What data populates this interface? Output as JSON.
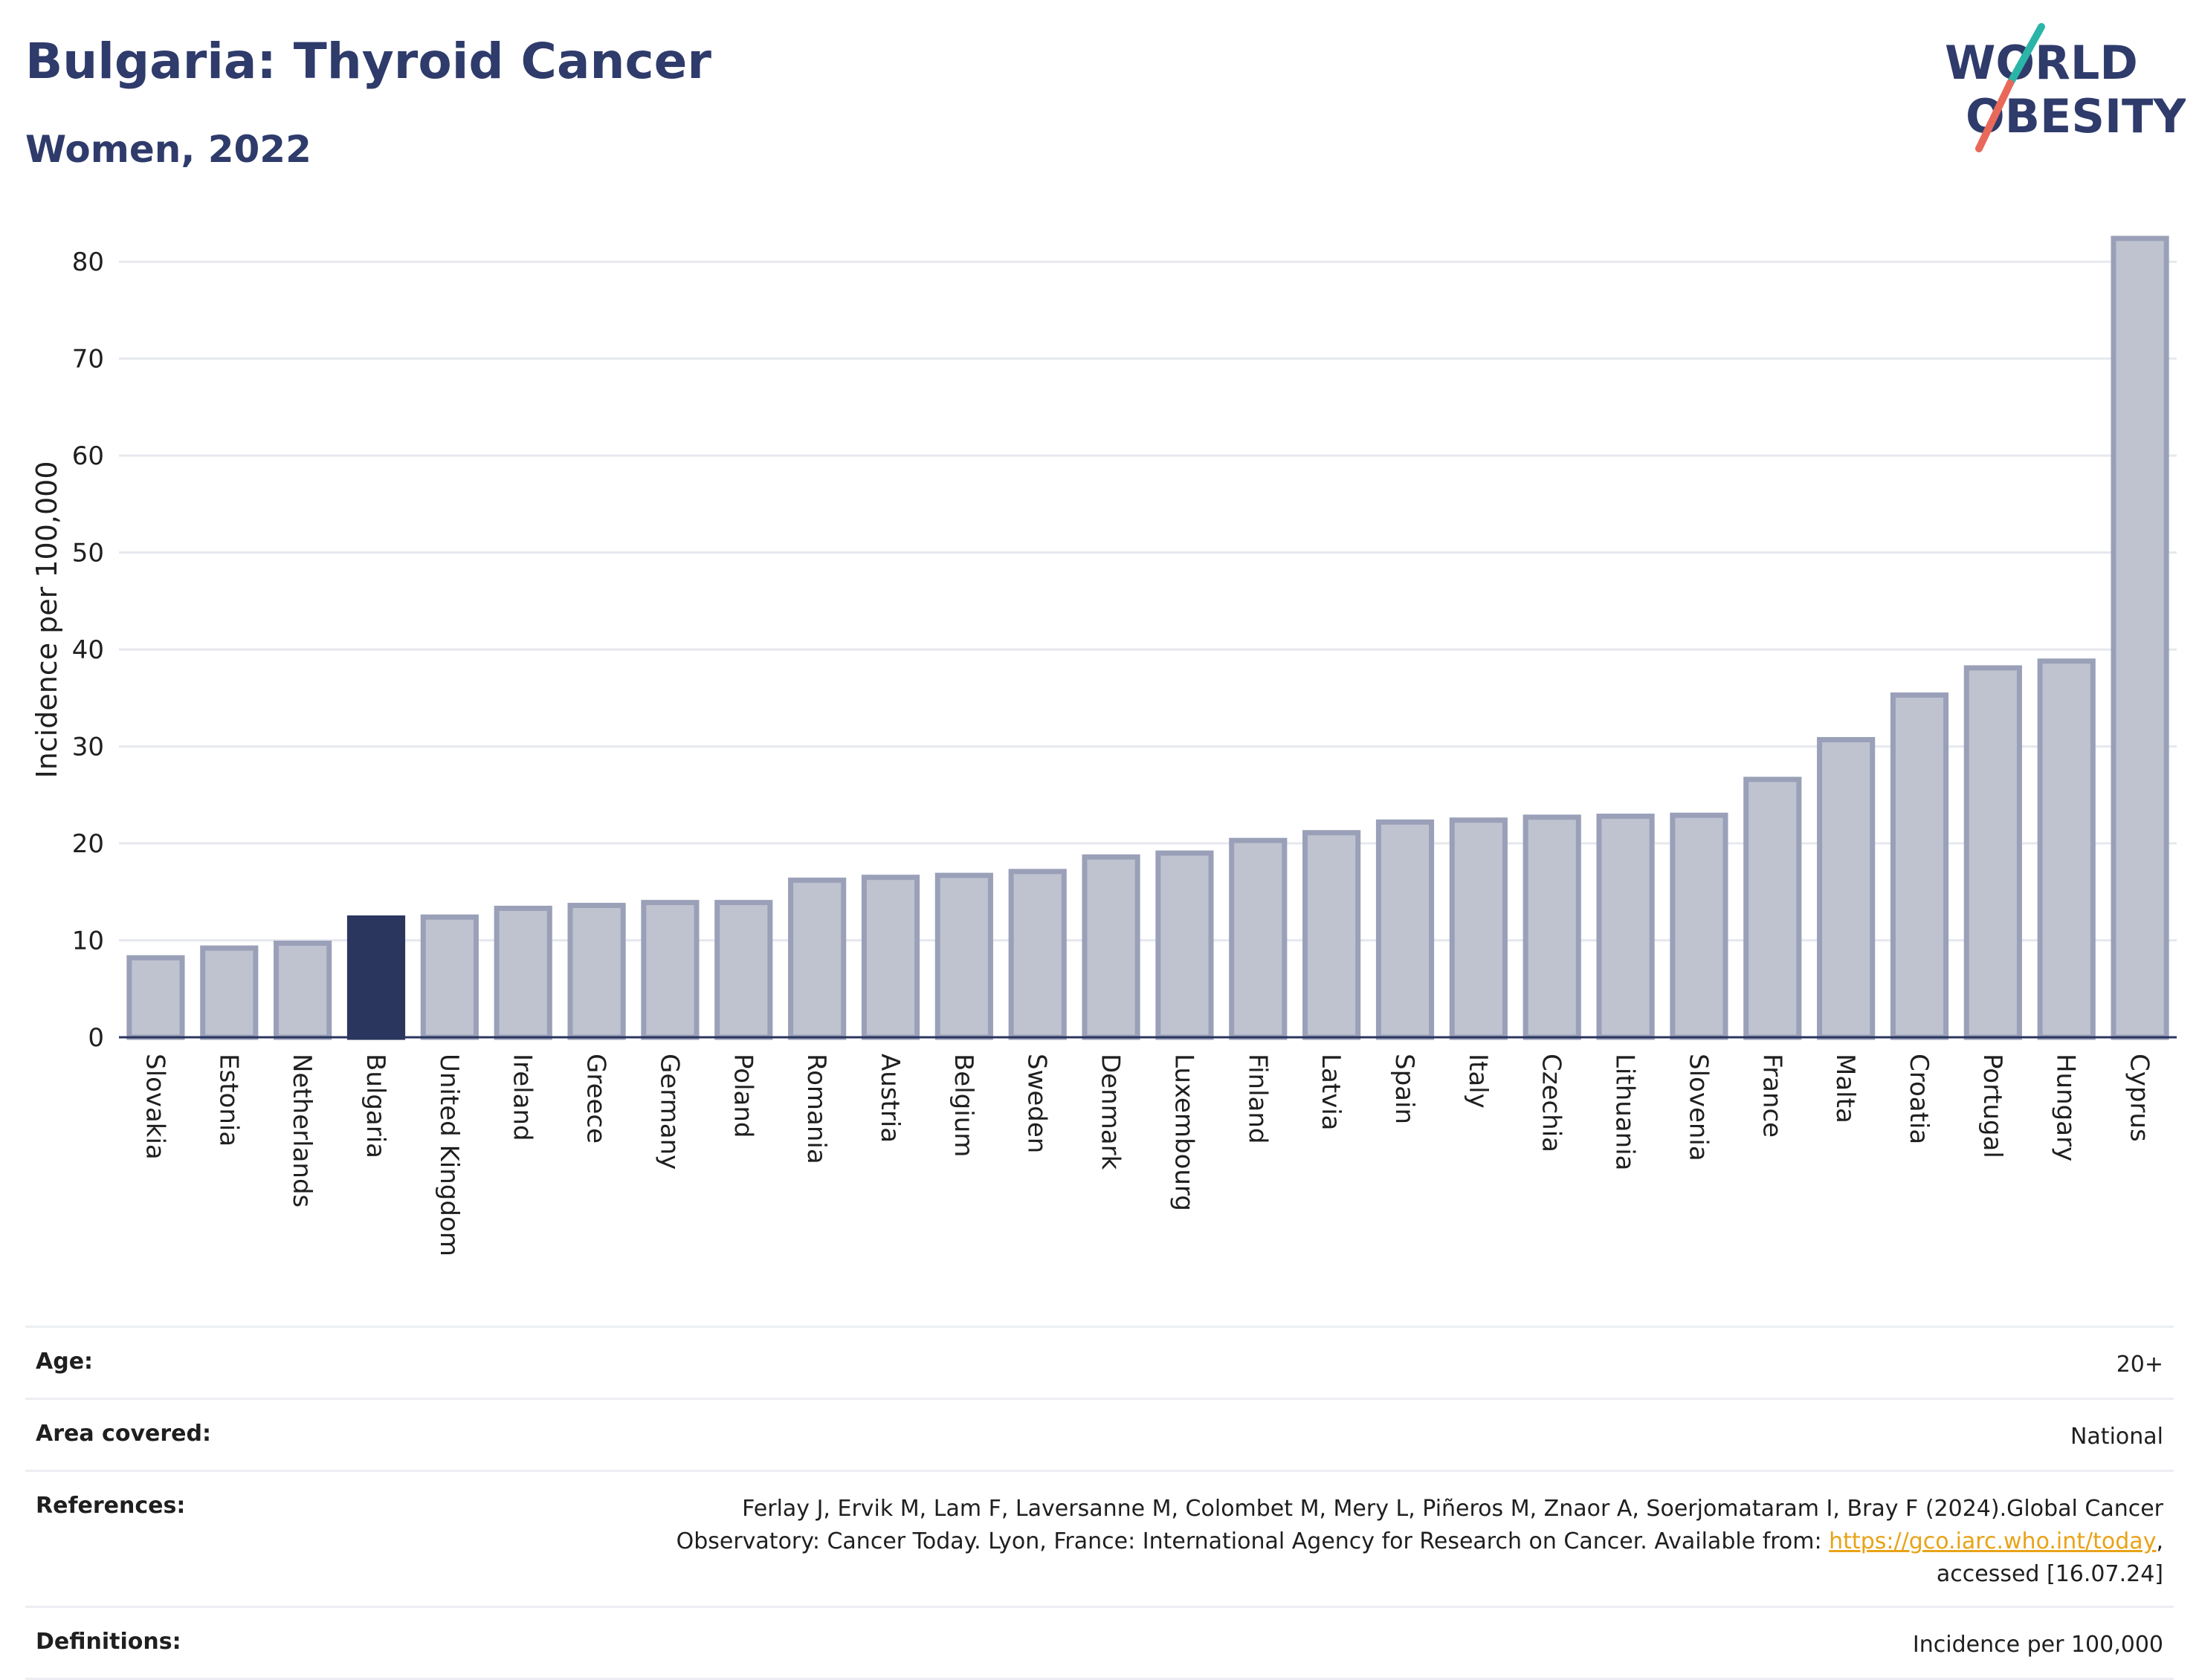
{
  "header": {
    "title": "Bulgaria: Thyroid Cancer",
    "subtitle": "Women, 2022"
  },
  "logo": {
    "line1": "WORLD",
    "line2": "OBESITY",
    "accent_teal": "#2bb5a8",
    "accent_coral": "#e8695a",
    "brand_color": "#2e3b6b"
  },
  "chart_data": {
    "type": "bar",
    "ylabel": "Incidence per 100,000",
    "xlabel": "",
    "ylim": [
      0,
      84
    ],
    "yticks": [
      0,
      10,
      20,
      30,
      40,
      50,
      60,
      70,
      80
    ],
    "grid": true,
    "highlight": "Bulgaria",
    "colors": {
      "bar": "#bfc3d0",
      "bar_edge": "#9aa0b8",
      "highlight": "#2b365f"
    },
    "categories": [
      "Slovakia",
      "Estonia",
      "Netherlands",
      "Bulgaria",
      "United Kingdom",
      "Ireland",
      "Greece",
      "Germany",
      "Poland",
      "Romania",
      "Austria",
      "Belgium",
      "Sweden",
      "Denmark",
      "Luxembourg",
      "Finland",
      "Latvia",
      "Spain",
      "Italy",
      "Czechia",
      "Lithuania",
      "Slovenia",
      "France",
      "Malta",
      "Croatia",
      "Portugal",
      "Hungary",
      "Cyprus"
    ],
    "values": [
      8.2,
      9.2,
      9.7,
      12.3,
      12.4,
      13.3,
      13.6,
      13.9,
      13.9,
      16.2,
      16.5,
      16.7,
      17.1,
      18.6,
      19.0,
      20.3,
      21.1,
      22.2,
      22.4,
      22.7,
      22.8,
      22.9,
      26.6,
      30.7,
      35.3,
      38.1,
      38.8,
      82.4
    ]
  },
  "meta": {
    "age_label": "Age:",
    "age_value": "20+",
    "area_label": "Area covered:",
    "area_value": "National",
    "references_label": "References:",
    "references_line1": "Ferlay J, Ervik M, Lam F, Laversanne M, Colombet M, Mery L, Piñeros M, Znaor A, Soerjomataram I, Bray F (2024).Global Cancer",
    "references_line2_prefix": "Observatory: Cancer Today. Lyon, France: International Agency for Research on Cancer. Available from: ",
    "references_link": "https://gco.iarc.who.int/today",
    "references_line2_suffix": ",",
    "references_line3": "accessed [16.07.24]",
    "definitions_label": "Definitions:",
    "definitions_value": "Incidence per 100,000"
  }
}
